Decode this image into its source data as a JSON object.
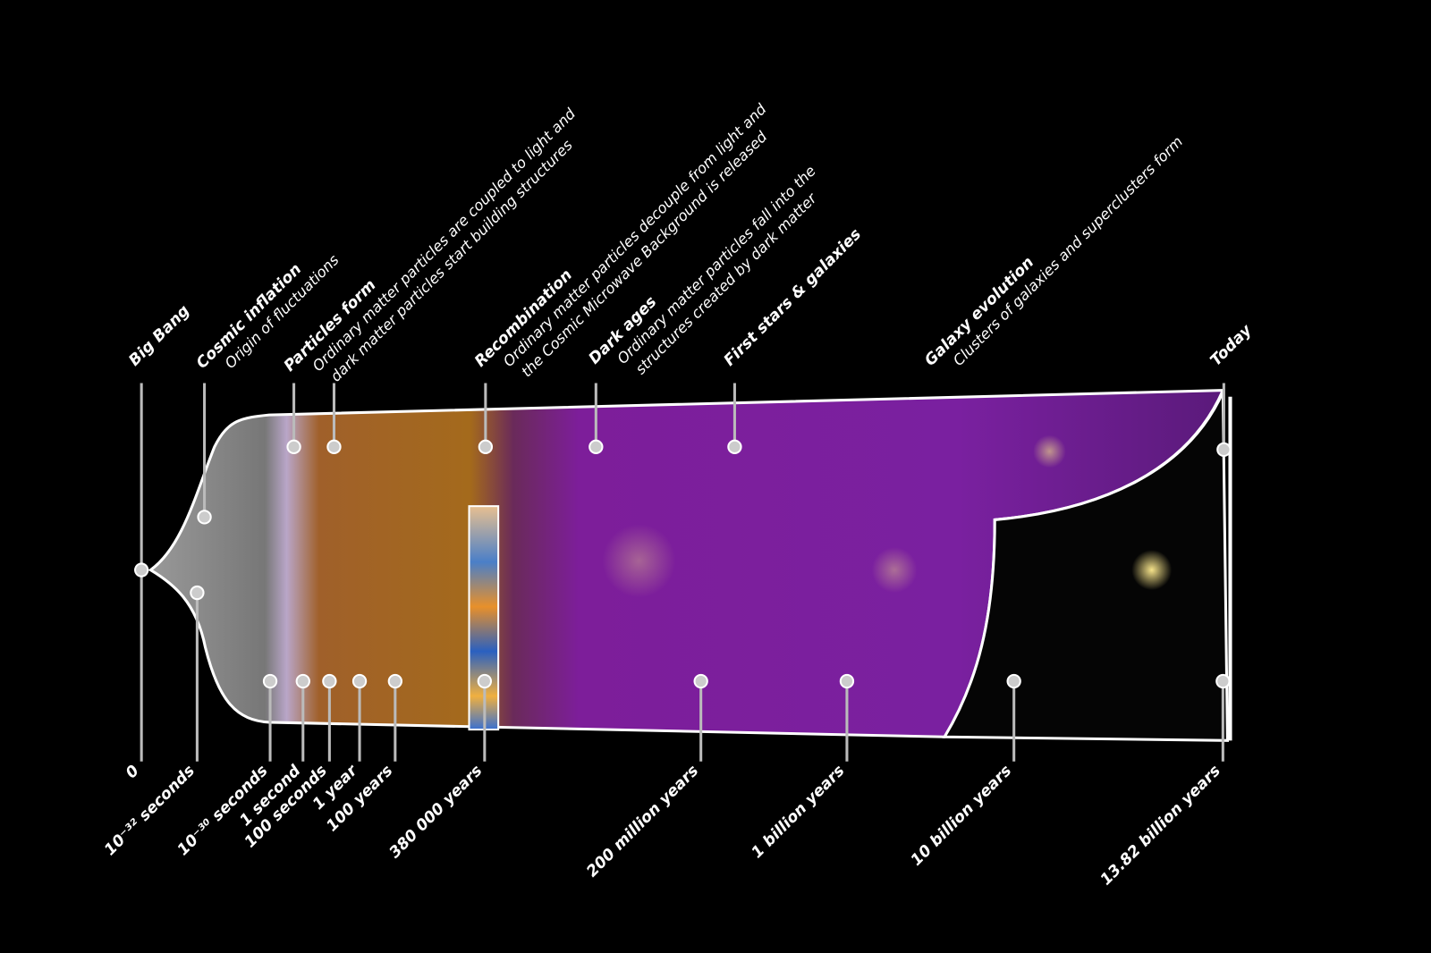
{
  "events": [
    {
      "title": "Big Bang",
      "description": []
    },
    {
      "title": "Cosmic inflation",
      "description": [
        "Origin of fluctuations"
      ]
    },
    {
      "title": "Particles form",
      "description": [
        "Ordinary matter particles are coupled to light and",
        "dark matter particles start building structures"
      ]
    },
    {
      "title": "Recombination",
      "description": [
        "Ordinary matter particles decouple from light and",
        "the Cosmic Microwave Background is released"
      ]
    },
    {
      "title": "Dark ages",
      "description": [
        "Ordinary  matter  particles  fall  into  the",
        "structures created by dark matter"
      ]
    },
    {
      "title": "First stars & galaxies",
      "description": []
    },
    {
      "title": "Galaxy evolution",
      "description": [
        "Clusters of galaxies and superclusters form"
      ]
    },
    {
      "title": "Today",
      "description": []
    }
  ],
  "times": [
    "0",
    "10⁻³² seconds",
    "10⁻³⁰ seconds",
    "1 second",
    "100 seconds",
    "1 year",
    "100 years",
    "380 000 years",
    "200 million years",
    "1 billion years",
    "10 billion years",
    "13.82 billion years"
  ]
}
